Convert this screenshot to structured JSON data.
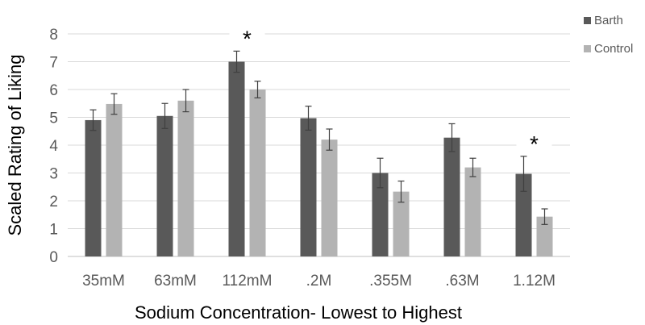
{
  "chart_data": {
    "type": "bar",
    "title": "",
    "xlabel": "Sodium Concentration- Lowest to Highest",
    "ylabel": "Scaled Rating of Liking",
    "ylim": [
      0,
      8
    ],
    "yticks": [
      0,
      1,
      2,
      3,
      4,
      5,
      6,
      7,
      8
    ],
    "grid": true,
    "legend_position": "right",
    "categories": [
      "35mM",
      "63mM",
      "112mM",
      ".2M",
      ".355M",
      ".63M",
      "1.12M"
    ],
    "series": [
      {
        "name": "Barth",
        "color": "#595959",
        "values": [
          4.9,
          5.05,
          7.0,
          4.97,
          3.0,
          4.27,
          2.97
        ],
        "errors": [
          0.37,
          0.45,
          0.38,
          0.43,
          0.53,
          0.5,
          0.63
        ]
      },
      {
        "name": "Control",
        "color": "#b3b3b3",
        "values": [
          5.48,
          5.6,
          6.0,
          4.2,
          2.33,
          3.2,
          1.43
        ],
        "errors": [
          0.37,
          0.4,
          0.3,
          0.38,
          0.38,
          0.33,
          0.28
        ]
      }
    ],
    "annotations": [
      {
        "category": "112mM",
        "text": "*"
      },
      {
        "category": "1.12M",
        "text": "*"
      }
    ]
  }
}
